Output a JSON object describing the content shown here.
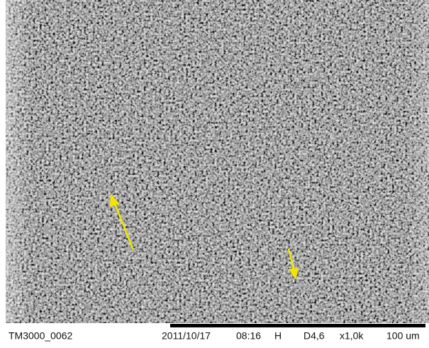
{
  "caption": {
    "image_id": "TM3000_0062",
    "date": "2011/10/17",
    "time": "08:16",
    "mode": "H",
    "working_distance": "D4,6",
    "magnification": "x1,0k",
    "scale": "100 um"
  }
}
